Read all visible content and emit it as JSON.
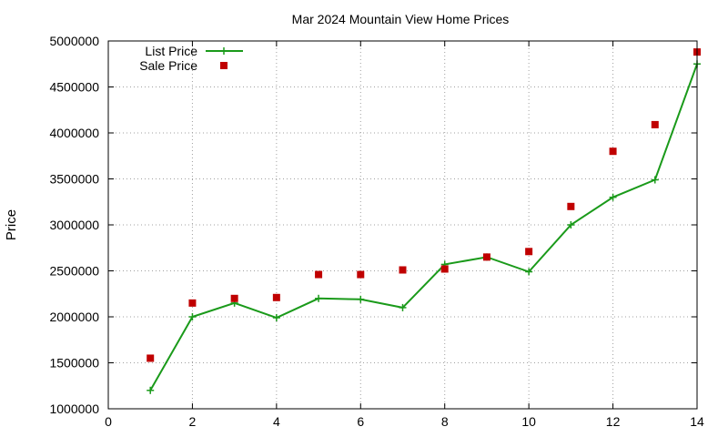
{
  "chart_data": {
    "type": "line",
    "title": "Mar 2024 Mountain View Home Prices",
    "xlabel": "",
    "ylabel": "Price",
    "xlim": [
      0,
      14
    ],
    "ylim": [
      1000000,
      5000000
    ],
    "xticks": [
      0,
      2,
      4,
      6,
      8,
      10,
      12,
      14
    ],
    "yticks": [
      1000000,
      1500000,
      2000000,
      2500000,
      3000000,
      3500000,
      4000000,
      4500000,
      5000000
    ],
    "grid": true,
    "legend_position": "top-left",
    "series": [
      {
        "name": "List Price",
        "style": "line-with-plus-markers",
        "color": "#1a9a1a",
        "x": [
          1,
          2,
          3,
          4,
          5,
          6,
          7,
          8,
          9,
          10,
          11,
          12,
          13,
          14
        ],
        "y": [
          1200000,
          2000000,
          2150000,
          1990000,
          2200000,
          2190000,
          2100000,
          2570000,
          2650000,
          2490000,
          3000000,
          3300000,
          3490000,
          4750000
        ]
      },
      {
        "name": "Sale Price",
        "style": "square-markers",
        "color": "#c00000",
        "x": [
          1,
          2,
          3,
          4,
          5,
          6,
          7,
          8,
          9,
          10,
          11,
          12,
          13,
          14
        ],
        "y": [
          1550000,
          2150000,
          2200000,
          2210000,
          2460000,
          2460000,
          2510000,
          2520000,
          2650000,
          2710000,
          3200000,
          3800000,
          4090000,
          4880000
        ]
      }
    ]
  }
}
